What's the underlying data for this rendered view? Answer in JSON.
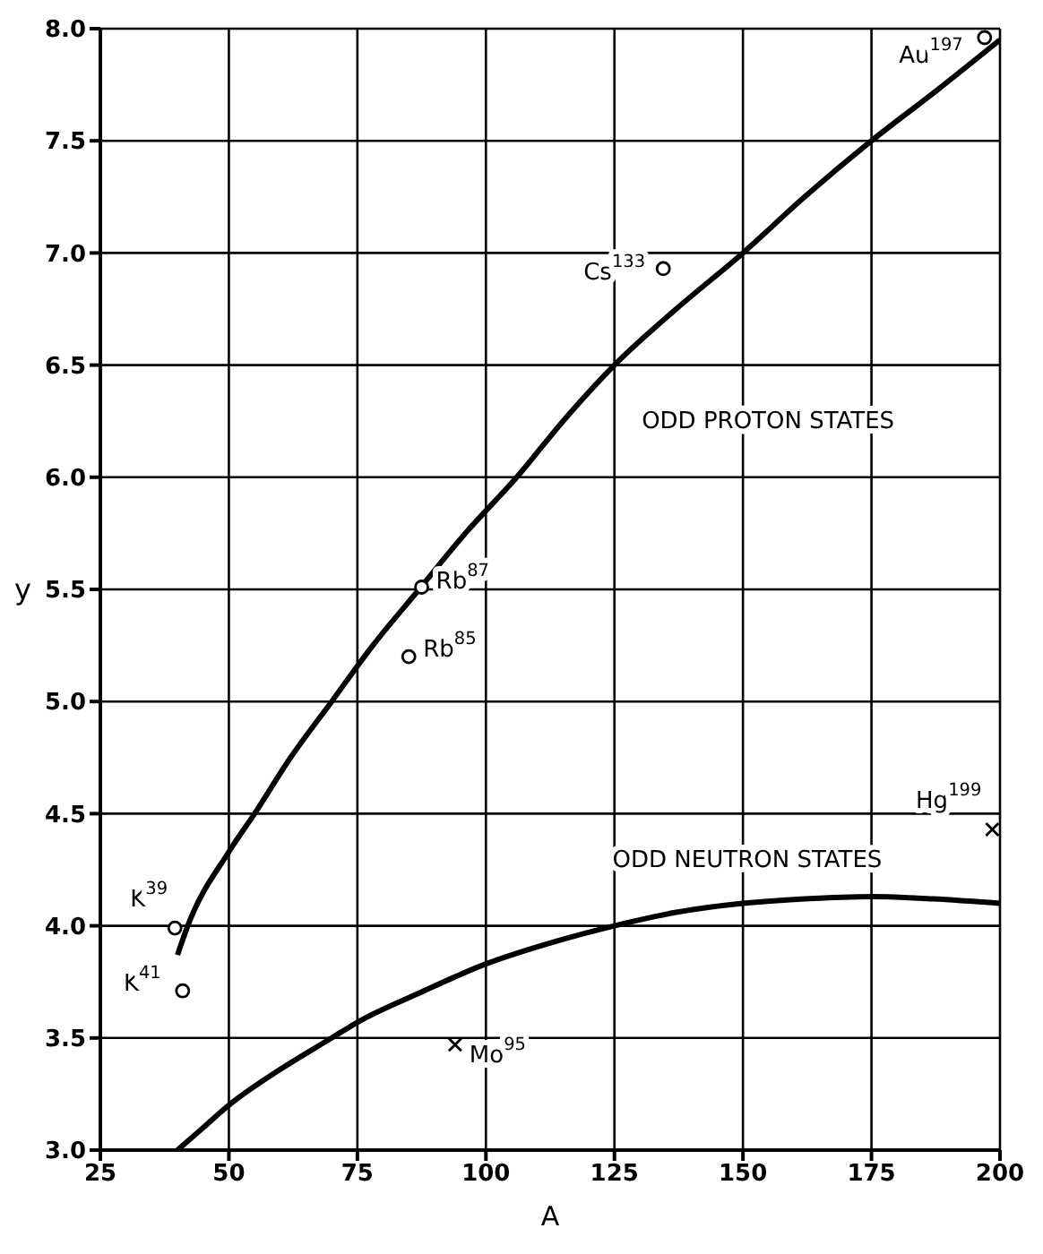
{
  "chart_data": {
    "type": "line",
    "xlabel": "A",
    "ylabel": "y",
    "xlim": [
      25,
      200
    ],
    "xticks": [
      25,
      50,
      75,
      100,
      125,
      150,
      175,
      200
    ],
    "ylim": [
      3,
      8
    ],
    "yticks": [
      {
        "value": 3,
        "label": "3.0"
      },
      {
        "value": 3.5,
        "label": "3.5"
      },
      {
        "value": 4,
        "label": "4.0"
      },
      {
        "value": 4.5,
        "label": "4.5"
      },
      {
        "value": 5,
        "label": "5.0"
      },
      {
        "value": 5.5,
        "label": "5.5"
      },
      {
        "value": 6,
        "label": "6.0"
      },
      {
        "value": 6.5,
        "label": "6.5"
      },
      {
        "value": 7,
        "label": "7.0"
      },
      {
        "value": 7.5,
        "label": "7.5"
      },
      {
        "value": 8,
        "label": "8.0"
      }
    ],
    "grid": true,
    "series": [
      {
        "name": "ODD PROTON STATES",
        "color": "#000000",
        "x": [
          40,
          42,
          50,
          55,
          62,
          70,
          78,
          87,
          96,
          106,
          115,
          125,
          137,
          150,
          162,
          175,
          188,
          200
        ],
        "values": [
          3.87,
          4.0,
          4.33,
          4.5,
          4.75,
          5.0,
          5.25,
          5.5,
          5.75,
          6.0,
          6.25,
          6.5,
          6.75,
          7.0,
          7.25,
          7.5,
          7.73,
          7.95
        ]
      },
      {
        "name": "ODD NEUTRON STATES",
        "color": "#000000",
        "x": [
          40,
          45,
          50,
          60,
          70,
          75,
          87,
          100,
          112,
          125,
          137,
          150,
          162,
          175,
          187,
          200
        ],
        "values": [
          3.0,
          3.1,
          3.2,
          3.36,
          3.5,
          3.57,
          3.7,
          3.83,
          3.92,
          4.0,
          4.06,
          4.1,
          4.12,
          4.13,
          4.12,
          4.1
        ]
      },
      {
        "type": "scatter",
        "name": "K$^{39}$",
        "color": "#000000",
        "marker": "circle",
        "x": [
          39.5
        ],
        "values": [
          3.99
        ]
      },
      {
        "type": "scatter",
        "name": "K$^{41}$",
        "color": "#000000",
        "marker": "circle",
        "x": [
          41
        ],
        "values": [
          3.71
        ]
      },
      {
        "type": "scatter",
        "name": "Rb$^{85}$",
        "color": "#000000",
        "marker": "circle",
        "x": [
          85
        ],
        "values": [
          5.2
        ]
      },
      {
        "type": "scatter",
        "name": "Rb$^{87}$",
        "color": "#000000",
        "marker": "circle",
        "x": [
          87.5
        ],
        "values": [
          5.51
        ]
      },
      {
        "type": "scatter",
        "name": "Cs$^{133}$",
        "color": "#000000",
        "marker": "circle",
        "x": [
          134.5
        ],
        "values": [
          6.93
        ]
      },
      {
        "type": "scatter",
        "name": "Au$^{197}$",
        "color": "#000000",
        "marker": "circle",
        "x": [
          197
        ],
        "values": [
          7.96
        ]
      },
      {
        "type": "scatter",
        "name": "Mo$^{95}$",
        "color": "#000000",
        "marker": "cross",
        "x": [
          94
        ],
        "values": [
          3.47
        ]
      },
      {
        "type": "scatter",
        "name": "Hg$^{199}$",
        "color": "#000000",
        "marker": "cross",
        "x": [
          198.5
        ],
        "values": [
          4.43
        ]
      }
    ]
  }
}
